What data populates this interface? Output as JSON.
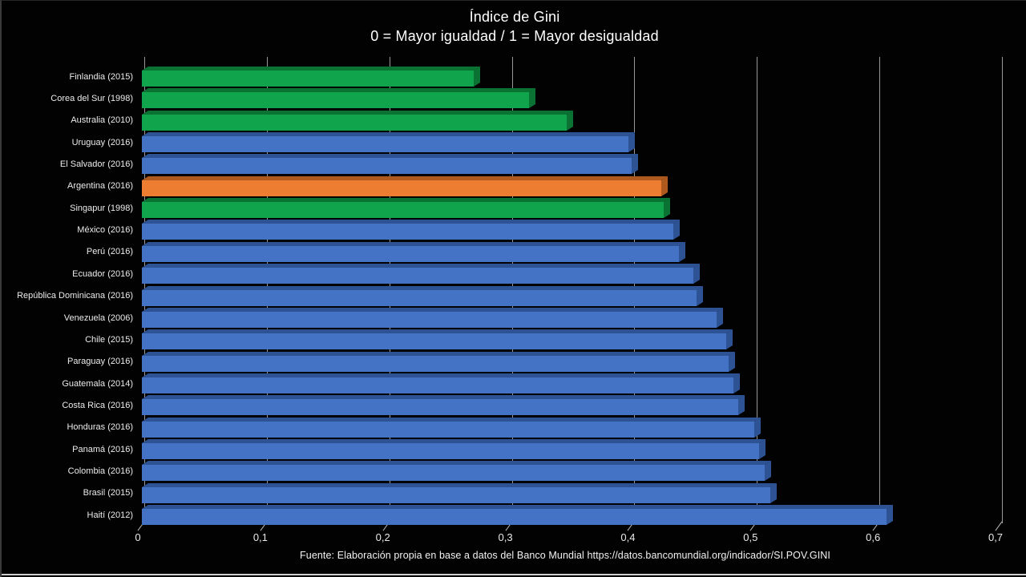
{
  "title": {
    "line1": "Índice de Gini",
    "line2": "0 = Mayor igualdad / 1 = Mayor desigualdad"
  },
  "footer": "Fuente:  Elaboración propia en base a datos del Banco Mundial  https://datos.bancomundial.org/indicador/SI.POV.GINI",
  "chart_data": {
    "type": "bar",
    "orientation": "horizontal",
    "style": "3d-beveled",
    "title": "Índice de Gini",
    "subtitle": "0 = Mayor igualdad / 1 = Mayor desigualdad",
    "xlabel": "",
    "ylabel": "",
    "xlim": [
      0,
      0.7
    ],
    "grid": "vertical",
    "legend": "none",
    "categories": [
      "Finlandia (2015)",
      "Corea del Sur (1998)",
      "Australia (2010)",
      "Uruguay (2016)",
      "El Salvador (2016)",
      "Argentina (2016)",
      "Singapur (1998)",
      "México (2016)",
      "Perú (2016)",
      "Ecuador (2016)",
      "República Dominicana (2016)",
      "Venezuela (2006)",
      "Chile (2015)",
      "Paraguay (2016)",
      "Guatemala (2014)",
      "Costa Rica (2016)",
      "Honduras (2016)",
      "Panamá (2016)",
      "Colombia (2016)",
      "Brasil (2015)",
      "Haití (2012)"
    ],
    "values": [
      0.271,
      0.316,
      0.347,
      0.397,
      0.4,
      0.424,
      0.426,
      0.434,
      0.438,
      0.45,
      0.453,
      0.469,
      0.477,
      0.479,
      0.483,
      0.487,
      0.5,
      0.504,
      0.508,
      0.513,
      0.608
    ],
    "bar_colors": [
      "green",
      "green",
      "green",
      "blue",
      "blue",
      "orange",
      "green",
      "blue",
      "blue",
      "blue",
      "blue",
      "blue",
      "blue",
      "blue",
      "blue",
      "blue",
      "blue",
      "blue",
      "blue",
      "blue",
      "blue"
    ],
    "x_ticks": {
      "values": [
        0,
        0.1,
        0.2,
        0.3,
        0.4,
        0.5,
        0.6,
        0.7
      ],
      "labels": [
        "0",
        "0,1",
        "0,2",
        "0,3",
        "0,4",
        "0,5",
        "0,6",
        "0,7"
      ]
    }
  },
  "colors": {
    "green": "#10A44C",
    "green_dark": "#0A7334",
    "blue": "#4472C4",
    "blue_dark": "#2E5395",
    "orange": "#ED7D31",
    "orange_dark": "#AE5A1E",
    "gridline": "#989898",
    "text": "#ECECEC",
    "background": "#020202"
  }
}
